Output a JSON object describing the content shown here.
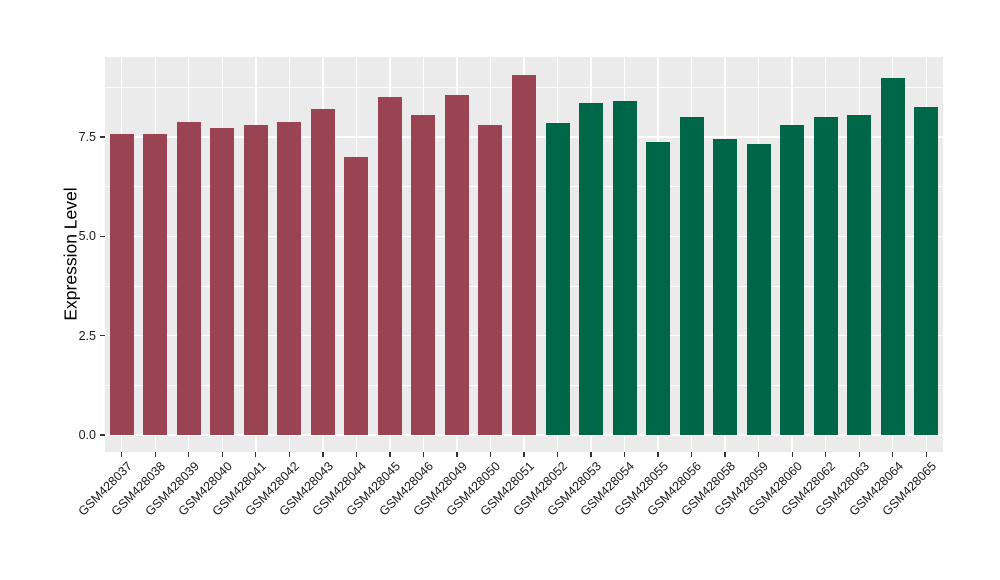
{
  "chart_data": {
    "type": "bar",
    "title": "",
    "xlabel": "",
    "ylabel": "Expression Level",
    "categories": [
      "GSM428037",
      "GSM428038",
      "GSM428039",
      "GSM428040",
      "GSM428041",
      "GSM428042",
      "GSM428043",
      "GSM428044",
      "GSM428045",
      "GSM428046",
      "GSM428049",
      "GSM428050",
      "GSM428051",
      "GSM428052",
      "GSM428053",
      "GSM428054",
      "GSM428055",
      "GSM428056",
      "GSM428058",
      "GSM428059",
      "GSM428060",
      "GSM428062",
      "GSM428063",
      "GSM428064",
      "GSM428065"
    ],
    "values": [
      7.58,
      7.58,
      7.89,
      7.72,
      7.8,
      7.88,
      8.21,
      7.0,
      8.52,
      8.05,
      8.57,
      7.81,
      9.07,
      7.86,
      8.36,
      8.41,
      7.38,
      8.0,
      7.45,
      7.32,
      7.81,
      8.01,
      8.06,
      8.98,
      8.25
    ],
    "bar_groups": [
      1,
      1,
      1,
      1,
      1,
      1,
      1,
      1,
      1,
      1,
      1,
      1,
      1,
      2,
      2,
      2,
      2,
      2,
      2,
      2,
      2,
      2,
      2,
      2,
      2
    ],
    "group_colors": {
      "1": "#9A4352",
      "2": "#006648"
    },
    "y_tick_values": [
      0.0,
      2.5,
      5.0,
      7.5
    ],
    "y_tick_labels": [
      "0.0",
      "2.5",
      "5.0",
      "7.5"
    ],
    "y_minor_tick_values": [
      1.25,
      3.75,
      6.25,
      8.75
    ],
    "ylim": [
      -0.45,
      9.52
    ],
    "grid": true,
    "legend_position": "none",
    "panel_background": "#EBEBEB",
    "grid_color": "#FFFFFF",
    "axis_text_color": "#1A1A1A"
  }
}
